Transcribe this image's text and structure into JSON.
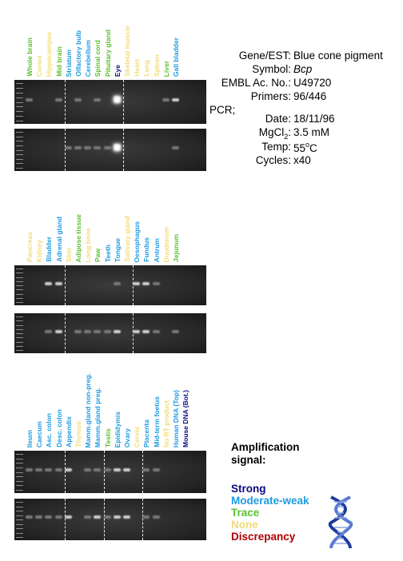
{
  "colors": {
    "strong": "#0a0a80",
    "moderate_weak": "#1e9be0",
    "trace": "#5cc030",
    "none": "#f2dc7a",
    "discrepancy": "#b00000"
  },
  "panels": [
    {
      "tissues": [
        {
          "name": "Whole brain",
          "signal": "trace"
        },
        {
          "name": "Cortex",
          "signal": "none"
        },
        {
          "name": "Hippocampus",
          "signal": "none"
        },
        {
          "name": "Mid brain",
          "signal": "trace"
        },
        {
          "name": "Striatum",
          "signal": "moderate_weak"
        },
        {
          "name": "Olfactory bulb",
          "signal": "moderate_weak"
        },
        {
          "name": "Cerebellum",
          "signal": "moderate_weak"
        },
        {
          "name": "Spinal cord",
          "signal": "trace"
        },
        {
          "name": "Pituitary gland",
          "signal": "trace"
        },
        {
          "name": "Eye",
          "signal": "strong"
        },
        {
          "name": "Skeletal muscle",
          "signal": "none"
        },
        {
          "name": "Heart",
          "signal": "none"
        },
        {
          "name": "Lung",
          "signal": "none"
        },
        {
          "name": "Spleen",
          "signal": "none"
        },
        {
          "name": "Liver",
          "signal": "trace"
        },
        {
          "name": "Gall bladder",
          "signal": "moderate_weak"
        }
      ],
      "dividers_after": [
        4,
        10
      ],
      "gel1_bands": [
        1,
        0,
        0,
        1,
        0,
        1,
        0,
        1,
        0,
        3,
        0,
        0,
        0,
        0,
        1,
        2
      ],
      "gel2_bands": [
        0,
        0,
        0,
        0,
        1,
        1,
        1,
        1,
        1,
        3,
        0,
        0,
        0,
        0,
        0,
        1
      ]
    },
    {
      "tissues": [
        {
          "name": "Pancreas",
          "signal": "none"
        },
        {
          "name": "Kidney",
          "signal": "none"
        },
        {
          "name": "Bladder",
          "signal": "moderate_weak"
        },
        {
          "name": "Adrenal gland",
          "signal": "moderate_weak"
        },
        {
          "name": "Skin",
          "signal": "none"
        },
        {
          "name": "Adipose tissue",
          "signal": "trace"
        },
        {
          "name": "Long bone",
          "signal": "none"
        },
        {
          "name": "Paw",
          "signal": "trace"
        },
        {
          "name": "Teeth",
          "signal": "moderate_weak"
        },
        {
          "name": "Tongue",
          "signal": "moderate_weak"
        },
        {
          "name": "Salivary gland",
          "signal": "none"
        },
        {
          "name": "Oesophagus",
          "signal": "moderate_weak"
        },
        {
          "name": "Fundus",
          "signal": "moderate_weak"
        },
        {
          "name": "Antrum",
          "signal": "moderate_weak"
        },
        {
          "name": "Duodenum",
          "signal": "none"
        },
        {
          "name": "Jejunum",
          "signal": "trace"
        }
      ],
      "dividers_after": [
        4,
        11
      ],
      "gel1_bands": [
        0,
        0,
        2,
        2,
        0,
        0,
        0,
        0,
        0,
        1,
        0,
        2,
        2,
        1,
        0,
        0
      ],
      "gel2_bands": [
        0,
        0,
        1,
        2,
        0,
        1,
        1,
        1,
        1,
        2,
        0,
        2,
        2,
        1,
        0,
        1
      ]
    },
    {
      "tissues": [
        {
          "name": "Ileum",
          "signal": "moderate_weak"
        },
        {
          "name": "Caecum",
          "signal": "moderate_weak"
        },
        {
          "name": "Asc. colon",
          "signal": "moderate_weak"
        },
        {
          "name": "Desc. colon",
          "signal": "moderate_weak"
        },
        {
          "name": "Appendix",
          "signal": "moderate_weak"
        },
        {
          "name": "Thymus",
          "signal": "none"
        },
        {
          "name": "Mamm.gland non-preg.",
          "signal": "moderate_weak"
        },
        {
          "name": "Mamm.gland preg.",
          "signal": "moderate_weak"
        },
        {
          "name": "Testis",
          "signal": "trace"
        },
        {
          "name": "Epididymis",
          "signal": "moderate_weak"
        },
        {
          "name": "Ovary",
          "signal": "moderate_weak"
        },
        {
          "name": "Cervix",
          "signal": "none"
        },
        {
          "name": "Placenta",
          "signal": "moderate_weak"
        },
        {
          "name": "Mid-term foetus",
          "signal": "moderate_weak"
        },
        {
          "name": "No RT product",
          "signal": "none"
        },
        {
          "name": "Human DNA (Top)",
          "signal": "moderate_weak"
        },
        {
          "name": "Mouse DNA (Bot.)",
          "signal": "strong"
        }
      ],
      "dividers_after": [
        4,
        8,
        12
      ],
      "gel1_bands": [
        1,
        1,
        1,
        1,
        2,
        0,
        1,
        1,
        1,
        2,
        2,
        0,
        1,
        1,
        0,
        0
      ],
      "gel2_bands": [
        1,
        1,
        1,
        1,
        2,
        0,
        1,
        2,
        1,
        2,
        2,
        0,
        1,
        1,
        0,
        0
      ]
    }
  ],
  "info": {
    "gene_label": "Gene/EST:",
    "gene_value": "Blue cone pigment",
    "symbol_label": "Symbol:",
    "symbol_value": "Bcp",
    "embl_label": "EMBL Ac. No.:",
    "embl_value": "U49720",
    "primers_label": "Primers:",
    "primers_value": "96/446",
    "pcr_label": "PCR;",
    "date_label": "Date:",
    "date_value": "18/11/96",
    "mgcl_label_prefix": "MgCl",
    "mgcl_label_sub": "2",
    "mgcl_label_suffix": ":",
    "mgcl_value": "3.5 mM",
    "temp_label": "Temp:",
    "temp_value_num": "55",
    "temp_value_sup": "o",
    "temp_value_unit": "C",
    "cycles_label": "Cycles:",
    "cycles_value": "x40"
  },
  "legend": {
    "title_line1": "Amplification",
    "title_line2": "signal:",
    "strong": "Strong",
    "moderate_weak": "Moderate-weak",
    "trace": "Trace",
    "none": "None",
    "discrepancy": "Discrepancy"
  }
}
